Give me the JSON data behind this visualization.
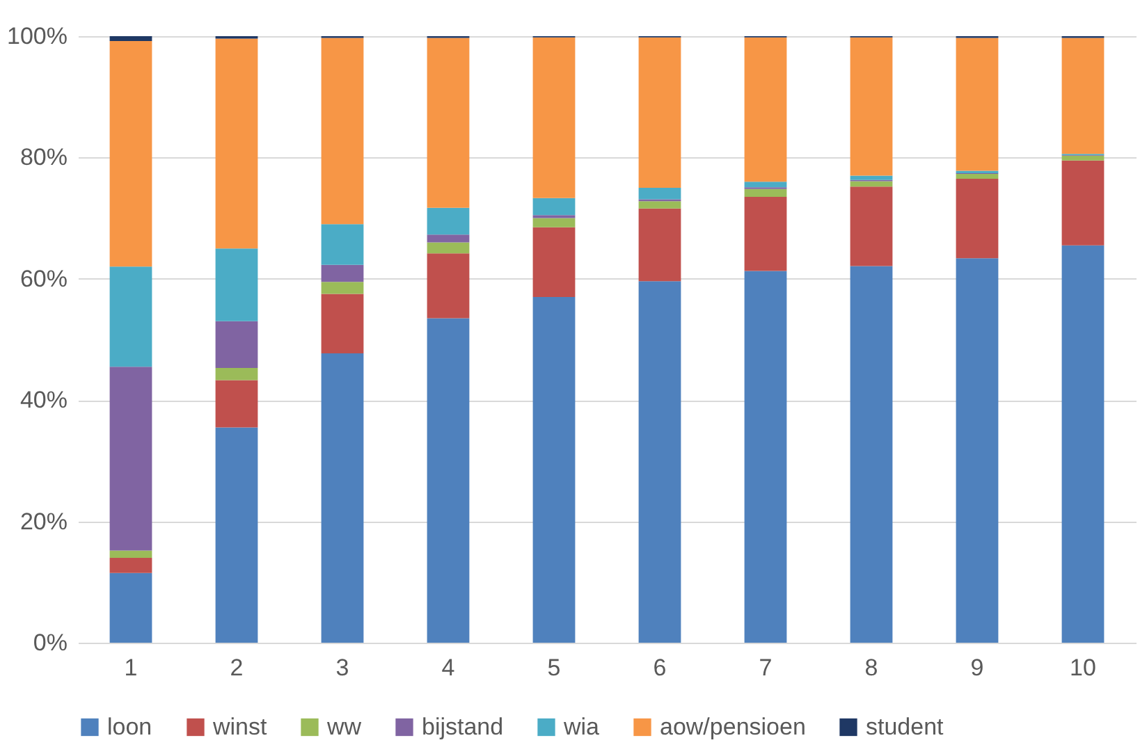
{
  "chart_data": {
    "type": "bar",
    "stacked": true,
    "categories": [
      "1",
      "2",
      "3",
      "4",
      "5",
      "6",
      "7",
      "8",
      "9",
      "10"
    ],
    "series": [
      {
        "name": "loon",
        "color": "#4f81bd",
        "values": [
          11.5,
          35.5,
          47.7,
          53.5,
          57,
          59.6,
          61.3,
          62.1,
          63.4,
          65.5
        ]
      },
      {
        "name": "winst",
        "color": "#c0504d",
        "values": [
          2.5,
          7.8,
          9.8,
          10.7,
          11.5,
          12,
          12.2,
          13.1,
          13.1,
          14
        ]
      },
      {
        "name": "ww",
        "color": "#9bbb59",
        "values": [
          1.2,
          2,
          2,
          1.8,
          1.5,
          1.2,
          1.3,
          0.9,
          0.8,
          0.8
        ]
      },
      {
        "name": "bijstand",
        "color": "#8064a2",
        "values": [
          30.3,
          7.7,
          2.8,
          1.3,
          0.5,
          0.3,
          0.3,
          0.2,
          0.1,
          0.1
        ]
      },
      {
        "name": "wia",
        "color": "#4bacc6",
        "values": [
          16.5,
          12,
          6.7,
          4.4,
          2.8,
          1.9,
          0.9,
          0.7,
          0.4,
          0.2
        ]
      },
      {
        "name": "aow/pensioen",
        "color": "#f79646",
        "values": [
          37.2,
          34.6,
          30.7,
          28,
          26.5,
          24.8,
          23.8,
          22.8,
          21.9,
          19.1
        ]
      },
      {
        "name": "student",
        "color": "#1f3864",
        "values": [
          0.8,
          0.4,
          0.3,
          0.3,
          0.2,
          0.2,
          0.2,
          0.2,
          0.3,
          0.3
        ]
      }
    ],
    "ylim": [
      0,
      100
    ],
    "yticks": [
      {
        "value": 0,
        "label": "0%"
      },
      {
        "value": 20,
        "label": "20%"
      },
      {
        "value": 40,
        "label": "40%"
      },
      {
        "value": 60,
        "label": "60%"
      },
      {
        "value": 80,
        "label": "80%"
      },
      {
        "value": 100,
        "label": "100%"
      }
    ],
    "grid": "y",
    "legend": "bottom"
  }
}
